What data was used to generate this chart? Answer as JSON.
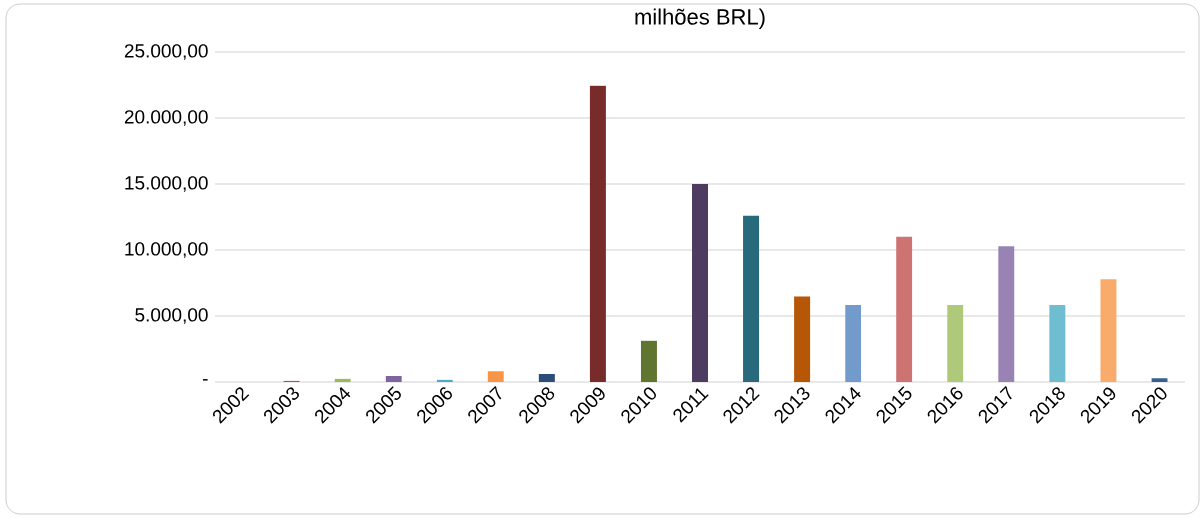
{
  "chart_data": {
    "type": "bar",
    "title": "milhões BRL)",
    "categories": [
      "2002",
      "2003",
      "2004",
      "2005",
      "2006",
      "2007",
      "2008",
      "2009",
      "2010",
      "2011",
      "2012",
      "2013",
      "2014",
      "2015",
      "2016",
      "2017",
      "2018",
      "2019",
      "2020"
    ],
    "values": [
      0,
      100,
      240,
      460,
      170,
      820,
      600,
      22450,
      3130,
      15000,
      12600,
      6470,
      5830,
      11010,
      5830,
      10280,
      5830,
      7790,
      280
    ],
    "colors": [
      "#4472c4",
      "#c0504d",
      "#9bbb59",
      "#8064a2",
      "#4bacc6",
      "#f79646",
      "#2c4d75",
      "#772c2a",
      "#5f7530",
      "#4d3b62",
      "#276a7c",
      "#b65708",
      "#729aca",
      "#cd7371",
      "#afc97a",
      "#9983b5",
      "#6fbdd1",
      "#f9ab6b",
      "#3a5f8f"
    ],
    "ylim": [
      0,
      25000
    ],
    "yticks": [
      {
        "value": 0,
        "label": "-"
      },
      {
        "value": 5000,
        "label": "5.000,00"
      },
      {
        "value": 10000,
        "label": "10.000,00"
      },
      {
        "value": 15000,
        "label": "15.000,00"
      },
      {
        "value": 20000,
        "label": "20.000,00"
      },
      {
        "value": 25000,
        "label": "25.000,00"
      }
    ],
    "grid": "y"
  }
}
